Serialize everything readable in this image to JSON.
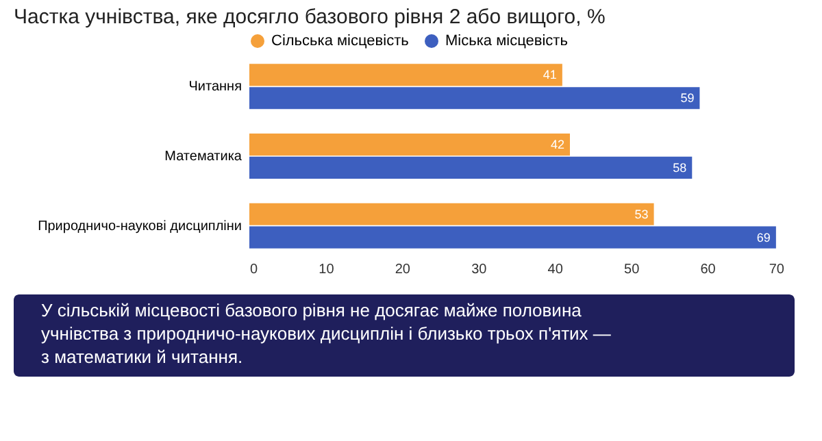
{
  "chart_data": {
    "type": "bar",
    "orientation": "horizontal",
    "title": "Частка учнівства, яке досягло базового рівня 2 або вищого, %",
    "categories": [
      "Читання",
      "Математика",
      "Природничо-наукові дисципліни"
    ],
    "series": [
      {
        "name": "Сільська місцевість",
        "color": "#f5a03a",
        "values": [
          41,
          42,
          53
        ]
      },
      {
        "name": "Міська місцевість",
        "color": "#3d5fbf",
        "values": [
          59,
          58,
          69
        ]
      }
    ],
    "xlim": [
      0,
      70
    ],
    "xticks": [
      0,
      10,
      20,
      30,
      40,
      50,
      60,
      70
    ],
    "grid": false,
    "legend": "top",
    "data_labels": true,
    "annotations": [
      "У сільській місцевості базового рівня не досягає майже половина учнівства з природничо-наукових дисциплін і близько трьох п'ятих — з математики й читання."
    ]
  }
}
